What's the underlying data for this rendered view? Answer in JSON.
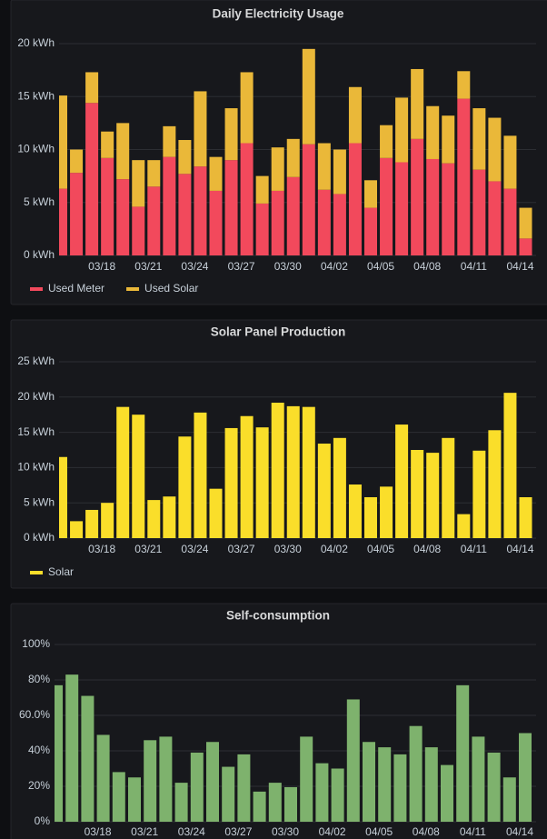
{
  "chart_data": [
    {
      "type": "bar",
      "title": "Daily Electricity Usage",
      "stacked": true,
      "legend": "bottom-left",
      "categories": [
        null,
        null,
        null,
        "03/18",
        null,
        null,
        "03/21",
        null,
        null,
        "03/24",
        null,
        null,
        "03/27",
        null,
        null,
        "03/30",
        null,
        null,
        "04/02",
        null,
        null,
        "04/05",
        null,
        null,
        "04/08",
        null,
        null,
        "04/11",
        null,
        null,
        "04/14"
      ],
      "series": [
        {
          "name": "Used Meter",
          "color": "#f2495c",
          "values": [
            6.3,
            7.8,
            14.4,
            9.2,
            7.2,
            4.6,
            6.5,
            9.3,
            7.7,
            8.4,
            6.1,
            9.0,
            10.6,
            4.9,
            6.1,
            7.4,
            10.5,
            6.2,
            5.8,
            10.6,
            4.5,
            9.2,
            8.8,
            11.0,
            9.1,
            8.7,
            14.8,
            8.1,
            7.0,
            6.3,
            1.6
          ]
        },
        {
          "name": "Used Solar",
          "color": "#eab839",
          "values": [
            8.8,
            2.2,
            2.9,
            2.5,
            5.3,
            4.4,
            2.5,
            2.9,
            3.2,
            7.1,
            3.2,
            4.9,
            6.7,
            2.6,
            4.1,
            3.6,
            9.0,
            4.4,
            4.2,
            5.3,
            2.6,
            3.1,
            6.1,
            6.6,
            5.0,
            4.5,
            2.6,
            5.8,
            6.0,
            5.0,
            2.9
          ]
        }
      ],
      "ylim": [
        0,
        20
      ],
      "yticks": [
        {
          "value": 0,
          "label": "0 kWh"
        },
        {
          "value": 5,
          "label": "5 kWh"
        },
        {
          "value": 10,
          "label": "10 kWh"
        },
        {
          "value": 15,
          "label": "15 kWh"
        },
        {
          "value": 20,
          "label": "20 kWh"
        }
      ],
      "grid": true
    },
    {
      "type": "bar",
      "title": "Solar Panel Production",
      "stacked": false,
      "legend": "bottom-left",
      "categories": [
        null,
        null,
        null,
        "03/18",
        null,
        null,
        "03/21",
        null,
        null,
        "03/24",
        null,
        null,
        "03/27",
        null,
        null,
        "03/30",
        null,
        null,
        "04/02",
        null,
        null,
        "04/05",
        null,
        null,
        "04/08",
        null,
        null,
        "04/11",
        null,
        null,
        "04/14"
      ],
      "series": [
        {
          "name": "Solar",
          "color": "#fade2a",
          "values": [
            11.5,
            2.4,
            4.0,
            5.0,
            18.6,
            17.5,
            5.4,
            5.9,
            14.4,
            17.8,
            7.0,
            15.6,
            17.3,
            15.7,
            19.2,
            18.7,
            18.6,
            13.4,
            14.2,
            7.6,
            5.8,
            7.3,
            16.1,
            12.5,
            12.1,
            14.2,
            3.4,
            12.4,
            15.3,
            20.6,
            5.8
          ]
        }
      ],
      "ylim": [
        0,
        25
      ],
      "yticks": [
        {
          "value": 0,
          "label": "0 kWh"
        },
        {
          "value": 5,
          "label": "5 kWh"
        },
        {
          "value": 10,
          "label": "10 kWh"
        },
        {
          "value": 15,
          "label": "15 kWh"
        },
        {
          "value": 20,
          "label": "20 kWh"
        },
        {
          "value": 25,
          "label": "25 kWh"
        }
      ],
      "grid": true
    },
    {
      "type": "bar",
      "title": "Self-consumption",
      "stacked": false,
      "categories": [
        null,
        null,
        null,
        "03/18",
        null,
        null,
        "03/21",
        null,
        null,
        "03/24",
        null,
        null,
        "03/27",
        null,
        null,
        "03/30",
        null,
        null,
        "04/02",
        null,
        null,
        "04/05",
        null,
        null,
        "04/08",
        null,
        null,
        "04/11",
        null,
        null,
        "04/14"
      ],
      "series": [
        {
          "color": "#7eb26d",
          "values": [
            77,
            83,
            71,
            49,
            28,
            25,
            46,
            48,
            22,
            39,
            45,
            31,
            38,
            17,
            22,
            19.5,
            48,
            33,
            30,
            69,
            45,
            42,
            38,
            54,
            42,
            32,
            77,
            48,
            39,
            25,
            50
          ]
        }
      ],
      "ylim": [
        0,
        100
      ],
      "yticks": [
        {
          "value": 0,
          "label": "0%"
        },
        {
          "value": 20,
          "label": "20%"
        },
        {
          "value": 40,
          "label": "40%"
        },
        {
          "value": 60,
          "label": "60.0%"
        },
        {
          "value": 80,
          "label": "80%"
        },
        {
          "value": 100,
          "label": "100%"
        }
      ],
      "grid": true
    }
  ]
}
